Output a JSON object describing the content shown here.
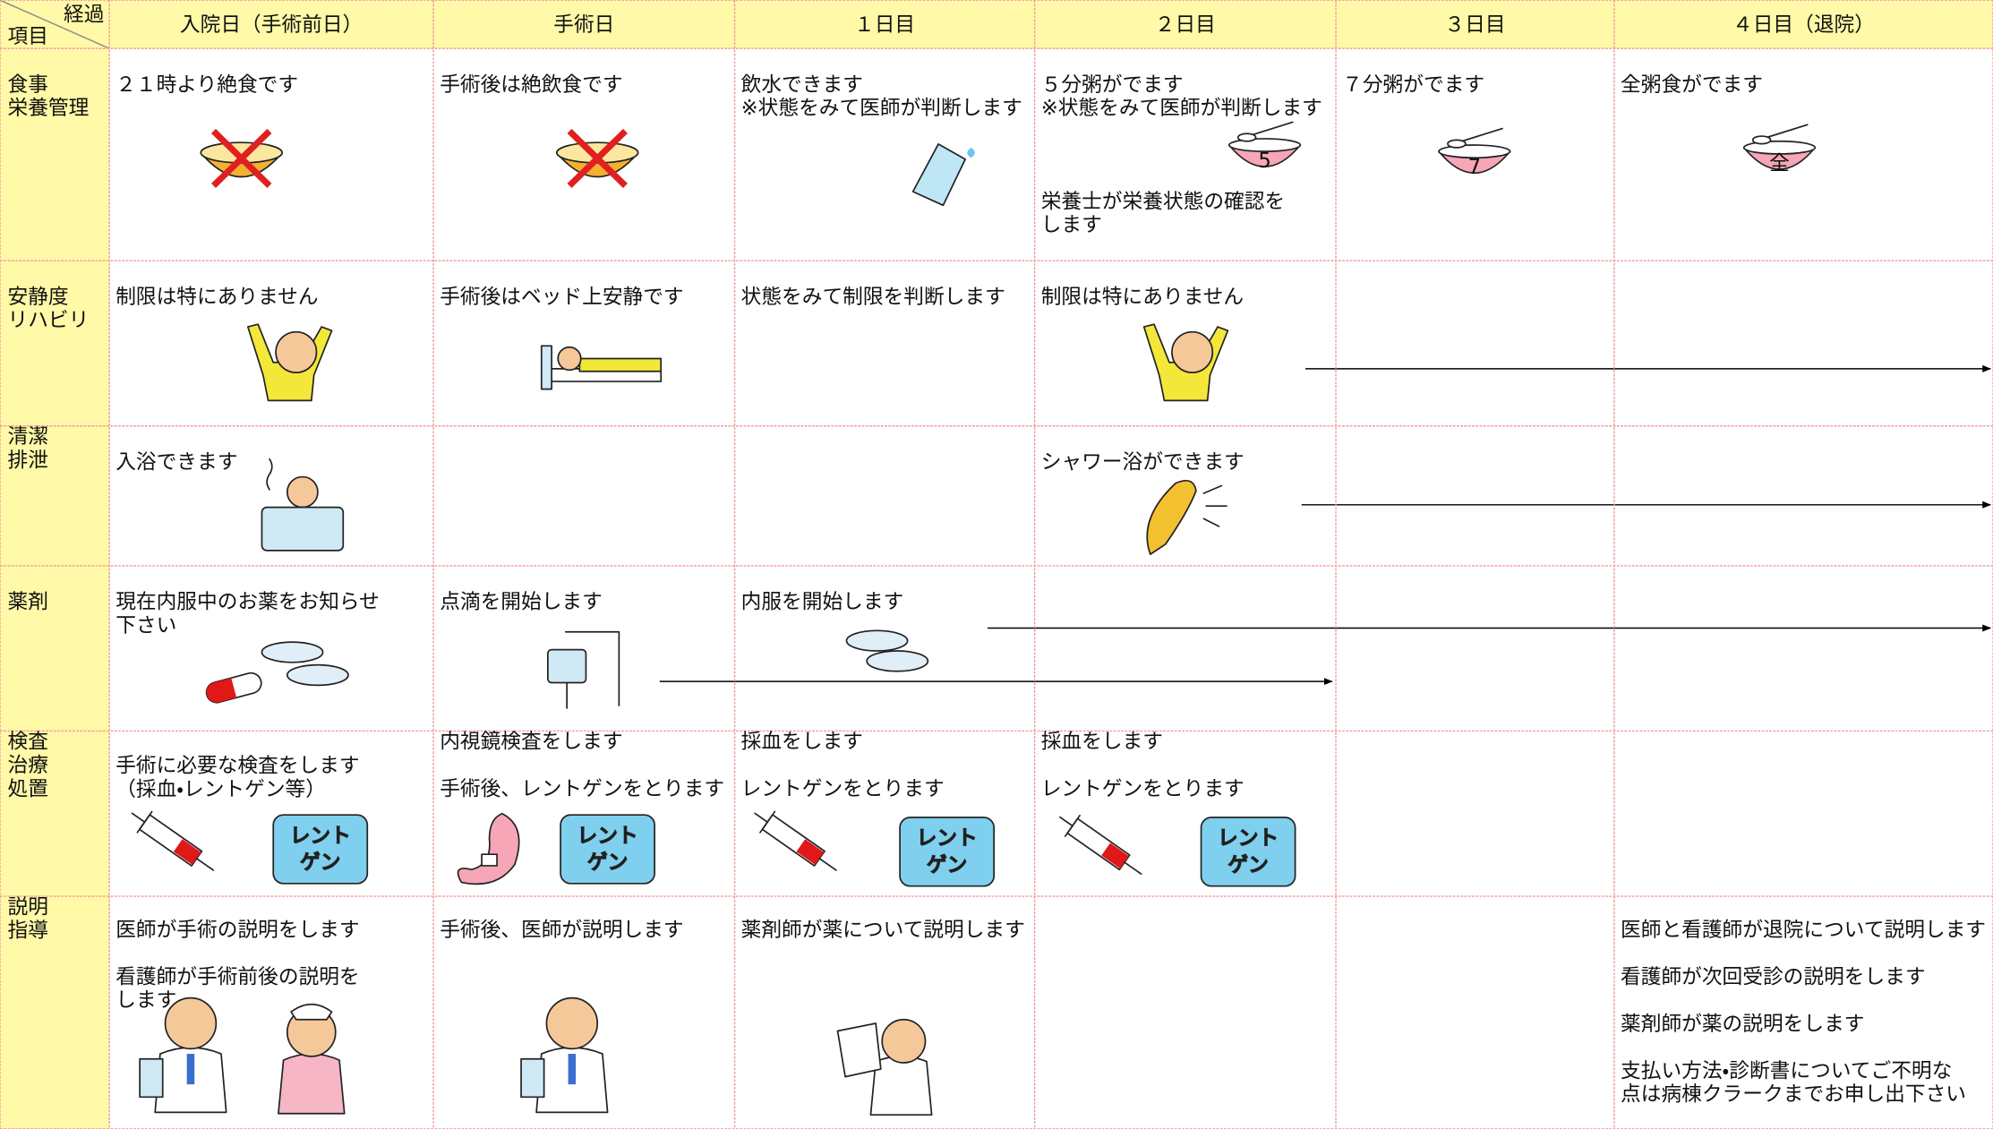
{
  "header": {
    "corner_top": "経過",
    "corner_bottom": "項目",
    "columns": [
      "入院日（手術前日）",
      "手術日",
      "１日目",
      "２日目",
      "３日目",
      "４日目（退院）"
    ]
  },
  "rows": [
    {
      "label": [
        "食事",
        "栄養管理"
      ],
      "cells": [
        [
          [
            "２１時より絶食です"
          ]
        ],
        [
          [
            "手術後は絶飲食です"
          ]
        ],
        [
          [
            "飲水できます",
            "※状態をみて医師が判断します"
          ]
        ],
        [
          [
            "５分粥がでます",
            "※状態をみて医師が判断します"
          ],
          [
            "栄養士が栄養状態の確認を",
            "します"
          ]
        ],
        [
          [
            "７分粥がでます"
          ]
        ],
        [
          [
            "全粥食がでます"
          ]
        ]
      ]
    },
    {
      "label": [
        "安静度",
        "リハビリ"
      ],
      "cells": [
        [
          [
            "制限は特にありません"
          ]
        ],
        [
          [
            "手術後はベッド上安静です"
          ]
        ],
        [
          [
            "状態をみて制限を判断します"
          ]
        ],
        [
          [
            "制限は特にありません"
          ]
        ],
        [],
        []
      ]
    },
    {
      "label": [
        "清潔",
        "排泄"
      ],
      "cells": [
        [
          [
            "入浴できます"
          ]
        ],
        [],
        [],
        [
          [
            "シャワー浴ができます"
          ]
        ],
        [],
        []
      ]
    },
    {
      "label": [
        "薬剤"
      ],
      "cells": [
        [
          [
            "現在内服中のお薬をお知らせ",
            "下さい"
          ]
        ],
        [
          [
            "点滴を開始します"
          ]
        ],
        [
          [
            "内服を開始します"
          ]
        ],
        [],
        [],
        []
      ]
    },
    {
      "label": [
        "検査",
        "治療",
        "処置"
      ],
      "cells": [
        [
          [
            "手術に必要な検査をします",
            "（採血・レントゲン等）"
          ]
        ],
        [
          [
            "内視鏡検査をします"
          ],
          [
            "手術後、レントゲンをとります"
          ]
        ],
        [
          [
            "採血をします"
          ],
          [
            "レントゲンをとります"
          ]
        ],
        [
          [
            "採血をします"
          ],
          [
            "レントゲンをとります"
          ]
        ],
        [],
        []
      ]
    },
    {
      "label": [
        "説明",
        "指導"
      ],
      "cells": [
        [
          [
            "医師が手術の説明をします"
          ],
          [
            "看護師が手術前後の説明を",
            "します"
          ]
        ],
        [
          [
            "手術後、医師が説明します"
          ]
        ],
        [
          [
            "薬剤師が薬について説明します"
          ]
        ],
        [],
        [],
        [
          [
            "医師と看護師が退院について説明します"
          ],
          [
            "看護師が次回受診の説明をします"
          ],
          [
            "薬剤師が薬の説明をします"
          ],
          [
            "支払い方法・診断書についてご不明な",
            "点は病棟クラークまでお申し出下さい"
          ]
        ]
      ]
    }
  ],
  "icon_text": {
    "porridge": [
      "5",
      "7",
      "全"
    ],
    "xray": [
      "レント",
      "ゲン"
    ]
  }
}
